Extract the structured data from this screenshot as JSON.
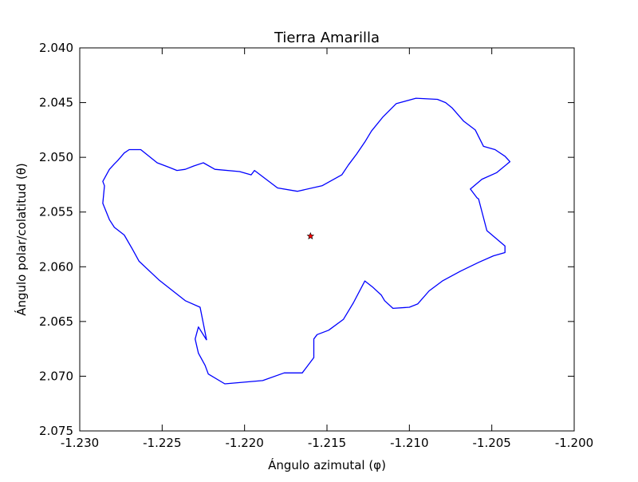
{
  "chart_data": {
    "type": "line",
    "title": "Tierra Amarilla",
    "xlabel": "Ángulo azimutal (φ)",
    "ylabel": "Ángulo polar/colatitud (θ)",
    "xlim": [
      -1.23,
      -1.2
    ],
    "ylim": [
      2.04,
      2.075
    ],
    "y_inverted": true,
    "grid": false,
    "xticks": [
      "-1.230",
      "-1.225",
      "-1.220",
      "-1.215",
      "-1.210",
      "-1.205",
      "-1.200"
    ],
    "yticks": [
      "2.040",
      "2.045",
      "2.050",
      "2.055",
      "2.060",
      "2.065",
      "2.070",
      "2.075"
    ],
    "outline_color": "#0000ff",
    "marker_color": "#ff0000",
    "outline": {
      "x": [
        -1.2223,
        -1.2227,
        -1.2236,
        -1.2252,
        -1.2264,
        -1.2268,
        -1.2273,
        -1.2279,
        -1.2282,
        -1.2286,
        -1.2285,
        -1.2286,
        -1.2282,
        -1.2279,
        -1.2277,
        -1.2273,
        -1.227,
        -1.2263,
        -1.2253,
        -1.2246,
        -1.2241,
        -1.2236,
        -1.2231,
        -1.2225,
        -1.2218,
        -1.2203,
        -1.2196,
        -1.2194,
        -1.218,
        -1.2168,
        -1.2153,
        -1.2141,
        -1.2137,
        -1.2132,
        -1.2127,
        -1.2123,
        -1.2116,
        -1.2108,
        -1.2096,
        -1.2083,
        -1.2078,
        -1.2074,
        -1.2067,
        -1.206,
        -1.2055,
        -1.2048,
        -1.2042,
        -1.2039,
        -1.2047,
        -1.2056,
        -1.2063,
        -1.2059,
        -1.2058,
        -1.2053,
        -1.2042,
        -1.2042,
        -1.2049,
        -1.2058,
        -1.2069,
        -1.208,
        -1.2088,
        -1.2095,
        -1.21,
        -1.211,
        -1.2115,
        -1.2117,
        -1.2122,
        -1.2127,
        -1.2134,
        -1.214,
        -1.2149,
        -1.2156,
        -1.2158,
        -1.2158,
        -1.2165,
        -1.2176,
        -1.2189,
        -1.2212,
        -1.2222,
        -1.2224,
        -1.2228,
        -1.223,
        -1.2228,
        -1.2223
      ],
      "y": [
        2.0667,
        2.0637,
        2.0631,
        2.0612,
        2.0595,
        2.0584,
        2.0571,
        2.0564,
        2.0557,
        2.0542,
        2.0526,
        2.0522,
        2.0511,
        2.0506,
        2.0503,
        2.0496,
        2.0493,
        2.0493,
        2.0505,
        2.0509,
        2.0512,
        2.0511,
        2.0508,
        2.0505,
        2.0511,
        2.0513,
        2.0516,
        2.0512,
        2.0528,
        2.0531,
        2.0526,
        2.0516,
        2.0507,
        2.0497,
        2.0486,
        2.0476,
        2.0463,
        2.0451,
        2.0446,
        2.0447,
        2.045,
        2.0455,
        2.0467,
        2.0475,
        2.049,
        2.0493,
        2.0499,
        2.0504,
        2.0514,
        2.052,
        2.0529,
        2.0537,
        2.0538,
        2.0567,
        2.0581,
        2.0587,
        2.059,
        2.0596,
        2.0604,
        2.0613,
        2.0622,
        2.0634,
        2.0637,
        2.0638,
        2.0631,
        2.0626,
        2.0619,
        2.0613,
        2.0633,
        2.0648,
        2.0658,
        2.0662,
        2.0666,
        2.0683,
        2.0697,
        2.0697,
        2.0704,
        2.0707,
        2.0698,
        2.069,
        2.0679,
        2.0666,
        2.0655,
        2.0667
      ]
    },
    "center_marker": {
      "x": -1.216,
      "y": 2.0572,
      "shape": "star"
    }
  }
}
